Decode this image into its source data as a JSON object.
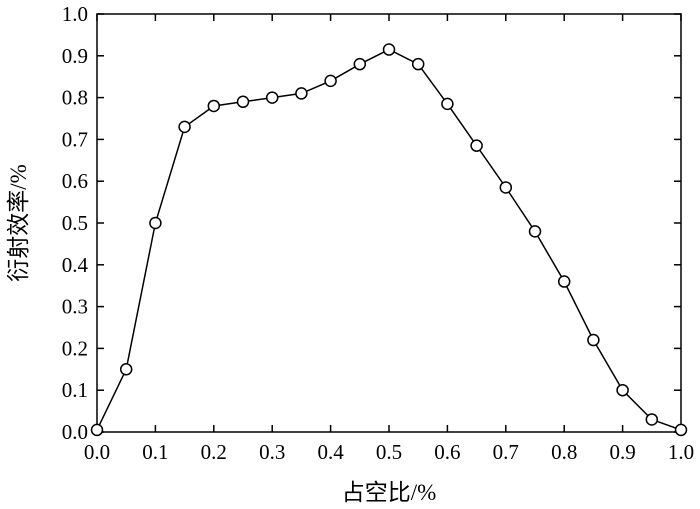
{
  "chart_data": {
    "type": "line",
    "title": "",
    "xlabel": "占空比/%",
    "ylabel": "衍射效率/%",
    "xlim": [
      0.0,
      1.0
    ],
    "ylim": [
      0.0,
      1.0
    ],
    "xticks": [
      "0.0",
      "0.1",
      "0.2",
      "0.3",
      "0.4",
      "0.5",
      "0.6",
      "0.7",
      "0.8",
      "0.9",
      "1.0"
    ],
    "yticks": [
      "0.0",
      "0.1",
      "0.2",
      "0.3",
      "0.4",
      "0.5",
      "0.6",
      "0.7",
      "0.8",
      "0.9",
      "1.0"
    ],
    "grid": false,
    "legend": "none",
    "series": [
      {
        "marker": "open-circle",
        "color": "#000000",
        "x": [
          0.0,
          0.05,
          0.1,
          0.15,
          0.2,
          0.25,
          0.3,
          0.35,
          0.4,
          0.45,
          0.5,
          0.55,
          0.6,
          0.65,
          0.7,
          0.75,
          0.8,
          0.85,
          0.9,
          0.95,
          1.0
        ],
        "y": [
          0.005,
          0.15,
          0.5,
          0.73,
          0.78,
          0.79,
          0.8,
          0.81,
          0.84,
          0.88,
          0.915,
          0.88,
          0.785,
          0.685,
          0.585,
          0.48,
          0.36,
          0.22,
          0.1,
          0.03,
          0.005
        ]
      }
    ]
  }
}
